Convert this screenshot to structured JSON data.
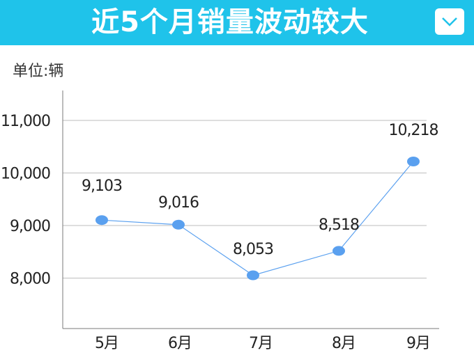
{
  "header": {
    "title": "近5个月销量波动较大",
    "bg_color": "#1fc3ea",
    "dropdown_icon": "chevron-down-icon"
  },
  "unit_label": "单位:辆",
  "chart_data": {
    "type": "line",
    "categories": [
      "5月",
      "6月",
      "7月",
      "8月",
      "9月"
    ],
    "values": [
      9103,
      9016,
      8053,
      8518,
      10218
    ],
    "value_labels": [
      "9,103",
      "9,016",
      "8,053",
      "8,518",
      "10,218"
    ],
    "yticks": [
      8000,
      9000,
      10000,
      11000
    ],
    "ytick_labels": [
      "8,000",
      "9,000",
      "10,000",
      "11,000"
    ],
    "grid": true,
    "line_color": "#5aa0ef",
    "marker_color": "#5aa0ef"
  }
}
